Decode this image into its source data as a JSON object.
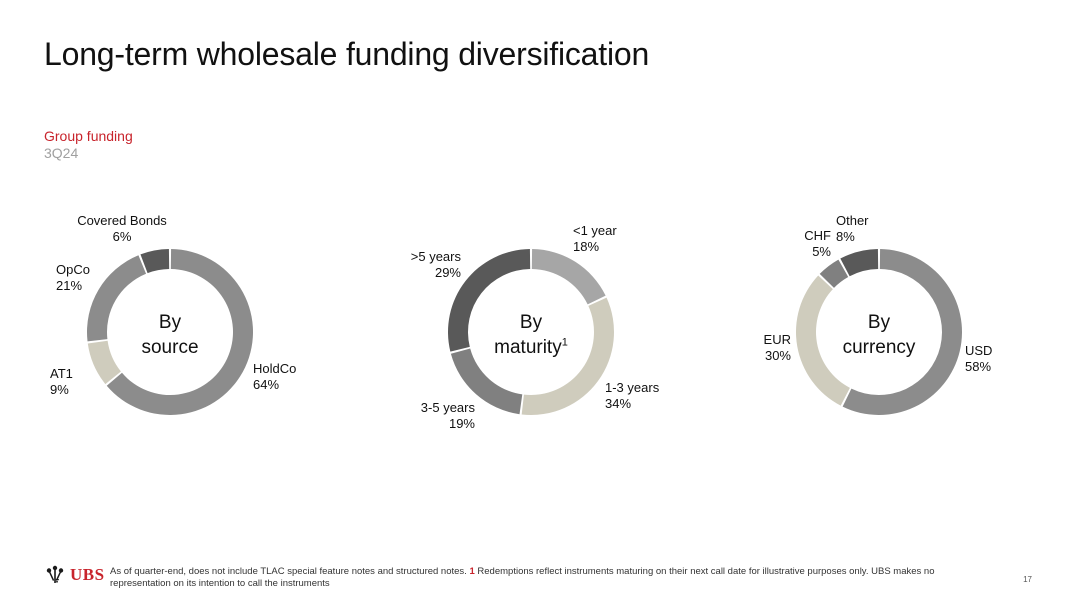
{
  "header": {
    "title": "Long-term wholesale funding diversification",
    "subtitle_primary": "Group funding",
    "subtitle_secondary": "3Q24"
  },
  "chart_data": [
    {
      "type": "pie",
      "variant": "donut",
      "center_label": "By source",
      "center_line1": "By",
      "center_line2": "source",
      "slices": [
        {
          "label": "HoldCo",
          "value": 64,
          "display": "64%",
          "color": "#8c8c8c"
        },
        {
          "label": "AT1",
          "value": 9,
          "display": "9%",
          "color": "#cfccbd"
        },
        {
          "label": "OpCo",
          "value": 21,
          "display": "21%",
          "color": "#8c8c8c"
        },
        {
          "label": "Covered Bonds",
          "value": 6,
          "display": "6%",
          "color": "#595959"
        }
      ]
    },
    {
      "type": "pie",
      "variant": "donut",
      "center_label": "By maturity",
      "center_line1": "By",
      "center_line2": "maturity",
      "center_sup": "1",
      "slices": [
        {
          "label": "<1 year",
          "value": 18,
          "display": "18%",
          "color": "#a6a6a6"
        },
        {
          "label": "1-3 years",
          "value": 34,
          "display": "34%",
          "color": "#cfccbd"
        },
        {
          "label": "3-5 years",
          "value": 19,
          "display": "19%",
          "color": "#808080"
        },
        {
          "label": ">5 years",
          "value": 29,
          "display": "29%",
          "color": "#595959"
        }
      ]
    },
    {
      "type": "pie",
      "variant": "donut",
      "center_label": "By currency",
      "center_line1": "By",
      "center_line2": "currency",
      "slices": [
        {
          "label": "USD",
          "value": 58,
          "display": "58%",
          "color": "#8c8c8c"
        },
        {
          "label": "EUR",
          "value": 30,
          "display": "30%",
          "color": "#cfccbd"
        },
        {
          "label": "CHF",
          "value": 5,
          "display": "5%",
          "color": "#808080"
        },
        {
          "label": "Other",
          "value": 8,
          "display": "8%",
          "color": "#595959"
        }
      ]
    }
  ],
  "footer": {
    "logo_text": "UBS",
    "logo_icon": "ubs-keys-icon",
    "note_part1": "As of quarter-end, does not include TLAC special feature notes and structured notes. ",
    "note_ref": "1",
    "note_part2": " Redemptions reflect instruments maturing on their next call date for illustrative purposes only. UBS makes no representation on its intention to call the instruments",
    "page_number": "17"
  },
  "colors": {
    "accent_red": "#c8242c",
    "subtitle_gray": "#a0a0a0"
  }
}
